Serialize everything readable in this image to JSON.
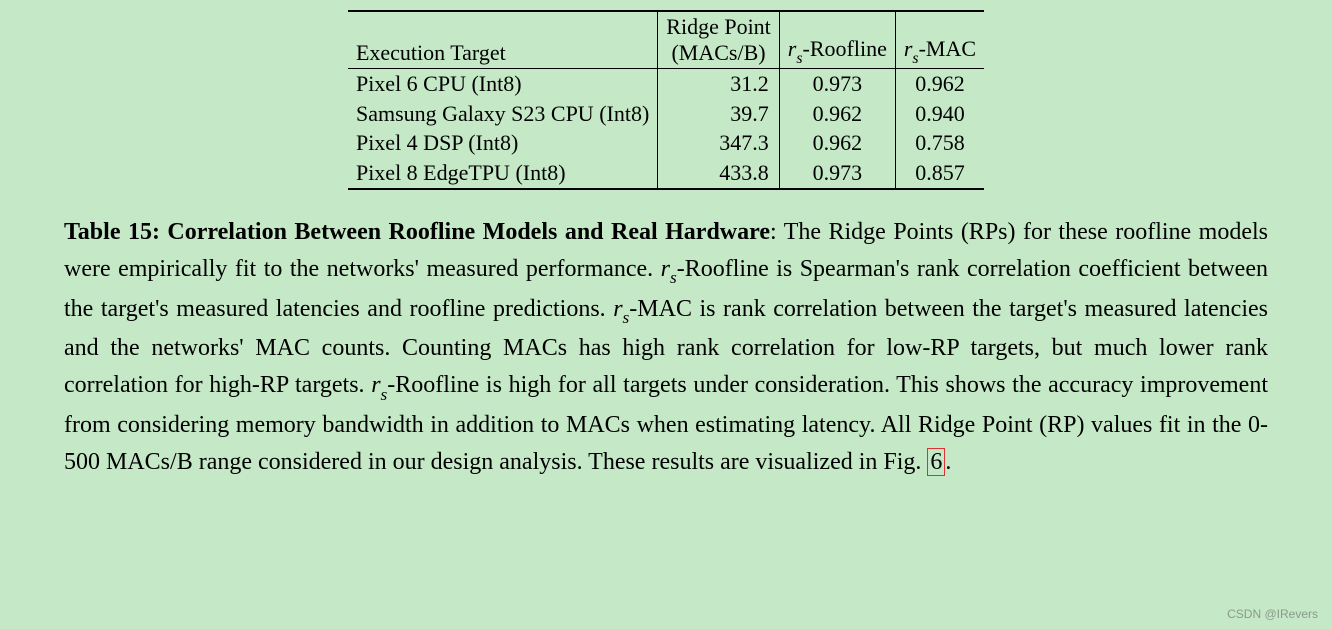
{
  "background_color": "#c5e8c7",
  "text_color": "#000000",
  "font_family": "Computer Modern / serif",
  "table": {
    "header": {
      "execution_target": "Execution Target",
      "ridge_point_line1": "Ridge Point",
      "ridge_point_line2": "(MACs/B)",
      "rs_roofline_pre": "r",
      "rs_roofline_sub": "s",
      "rs_roofline_post": "-Roofline",
      "rs_mac_pre": "r",
      "rs_mac_sub": "s",
      "rs_mac_post": "-MAC"
    },
    "rows": [
      {
        "target": "Pixel 6 CPU (Int8)",
        "ridge": "31.2",
        "roof": "0.973",
        "mac": "0.962"
      },
      {
        "target": "Samsung Galaxy S23 CPU (Int8)",
        "ridge": "39.7",
        "roof": "0.962",
        "mac": "0.940"
      },
      {
        "target": "Pixel 4 DSP (Int8)",
        "ridge": "347.3",
        "roof": "0.962",
        "mac": "0.758"
      },
      {
        "target": "Pixel 8 EdgeTPU (Int8)",
        "ridge": "433.8",
        "roof": "0.973",
        "mac": "0.857"
      }
    ],
    "column_align": [
      "left",
      "right",
      "center",
      "center"
    ],
    "border_color": "#000000",
    "font_size_pt": 16
  },
  "caption": {
    "label": "Table 15: Correlation Between Roofline Models and Real Hardware",
    "sep": ": ",
    "p1": "The Ridge Points (RPs) for these roofline models were empirically fit to the networks' measured performance. ",
    "rs1_pre": "r",
    "rs1_sub": "s",
    "rs1_post": "-Roofline",
    "p2": " is Spearman's rank correlation coefficient between the target's measured latencies and roofline predictions. ",
    "rs2_pre": "r",
    "rs2_sub": "s",
    "rs2_post": "-MAC",
    "p3": " is rank correlation between the target's measured latencies and the networks' MAC counts. Counting MACs has high rank correlation for low-RP targets, but much lower rank correlation for high-RP targets. ",
    "rs3_pre": "r",
    "rs3_sub": "s",
    "rs3_post": "-Roofline",
    "p4": " is high for all targets under consideration. This shows the accuracy improvement from considering memory bandwidth in addition to MACs when estimating latency. All Ridge Point (RP) values fit in the 0-500 MACs/B range considered in our design analysis. These results are visualized in Fig. ",
    "figref": "6",
    "p5": ".",
    "figref_border_color": "#e03030",
    "font_size_pt": 18
  },
  "watermark": "CSDN @IRevers"
}
